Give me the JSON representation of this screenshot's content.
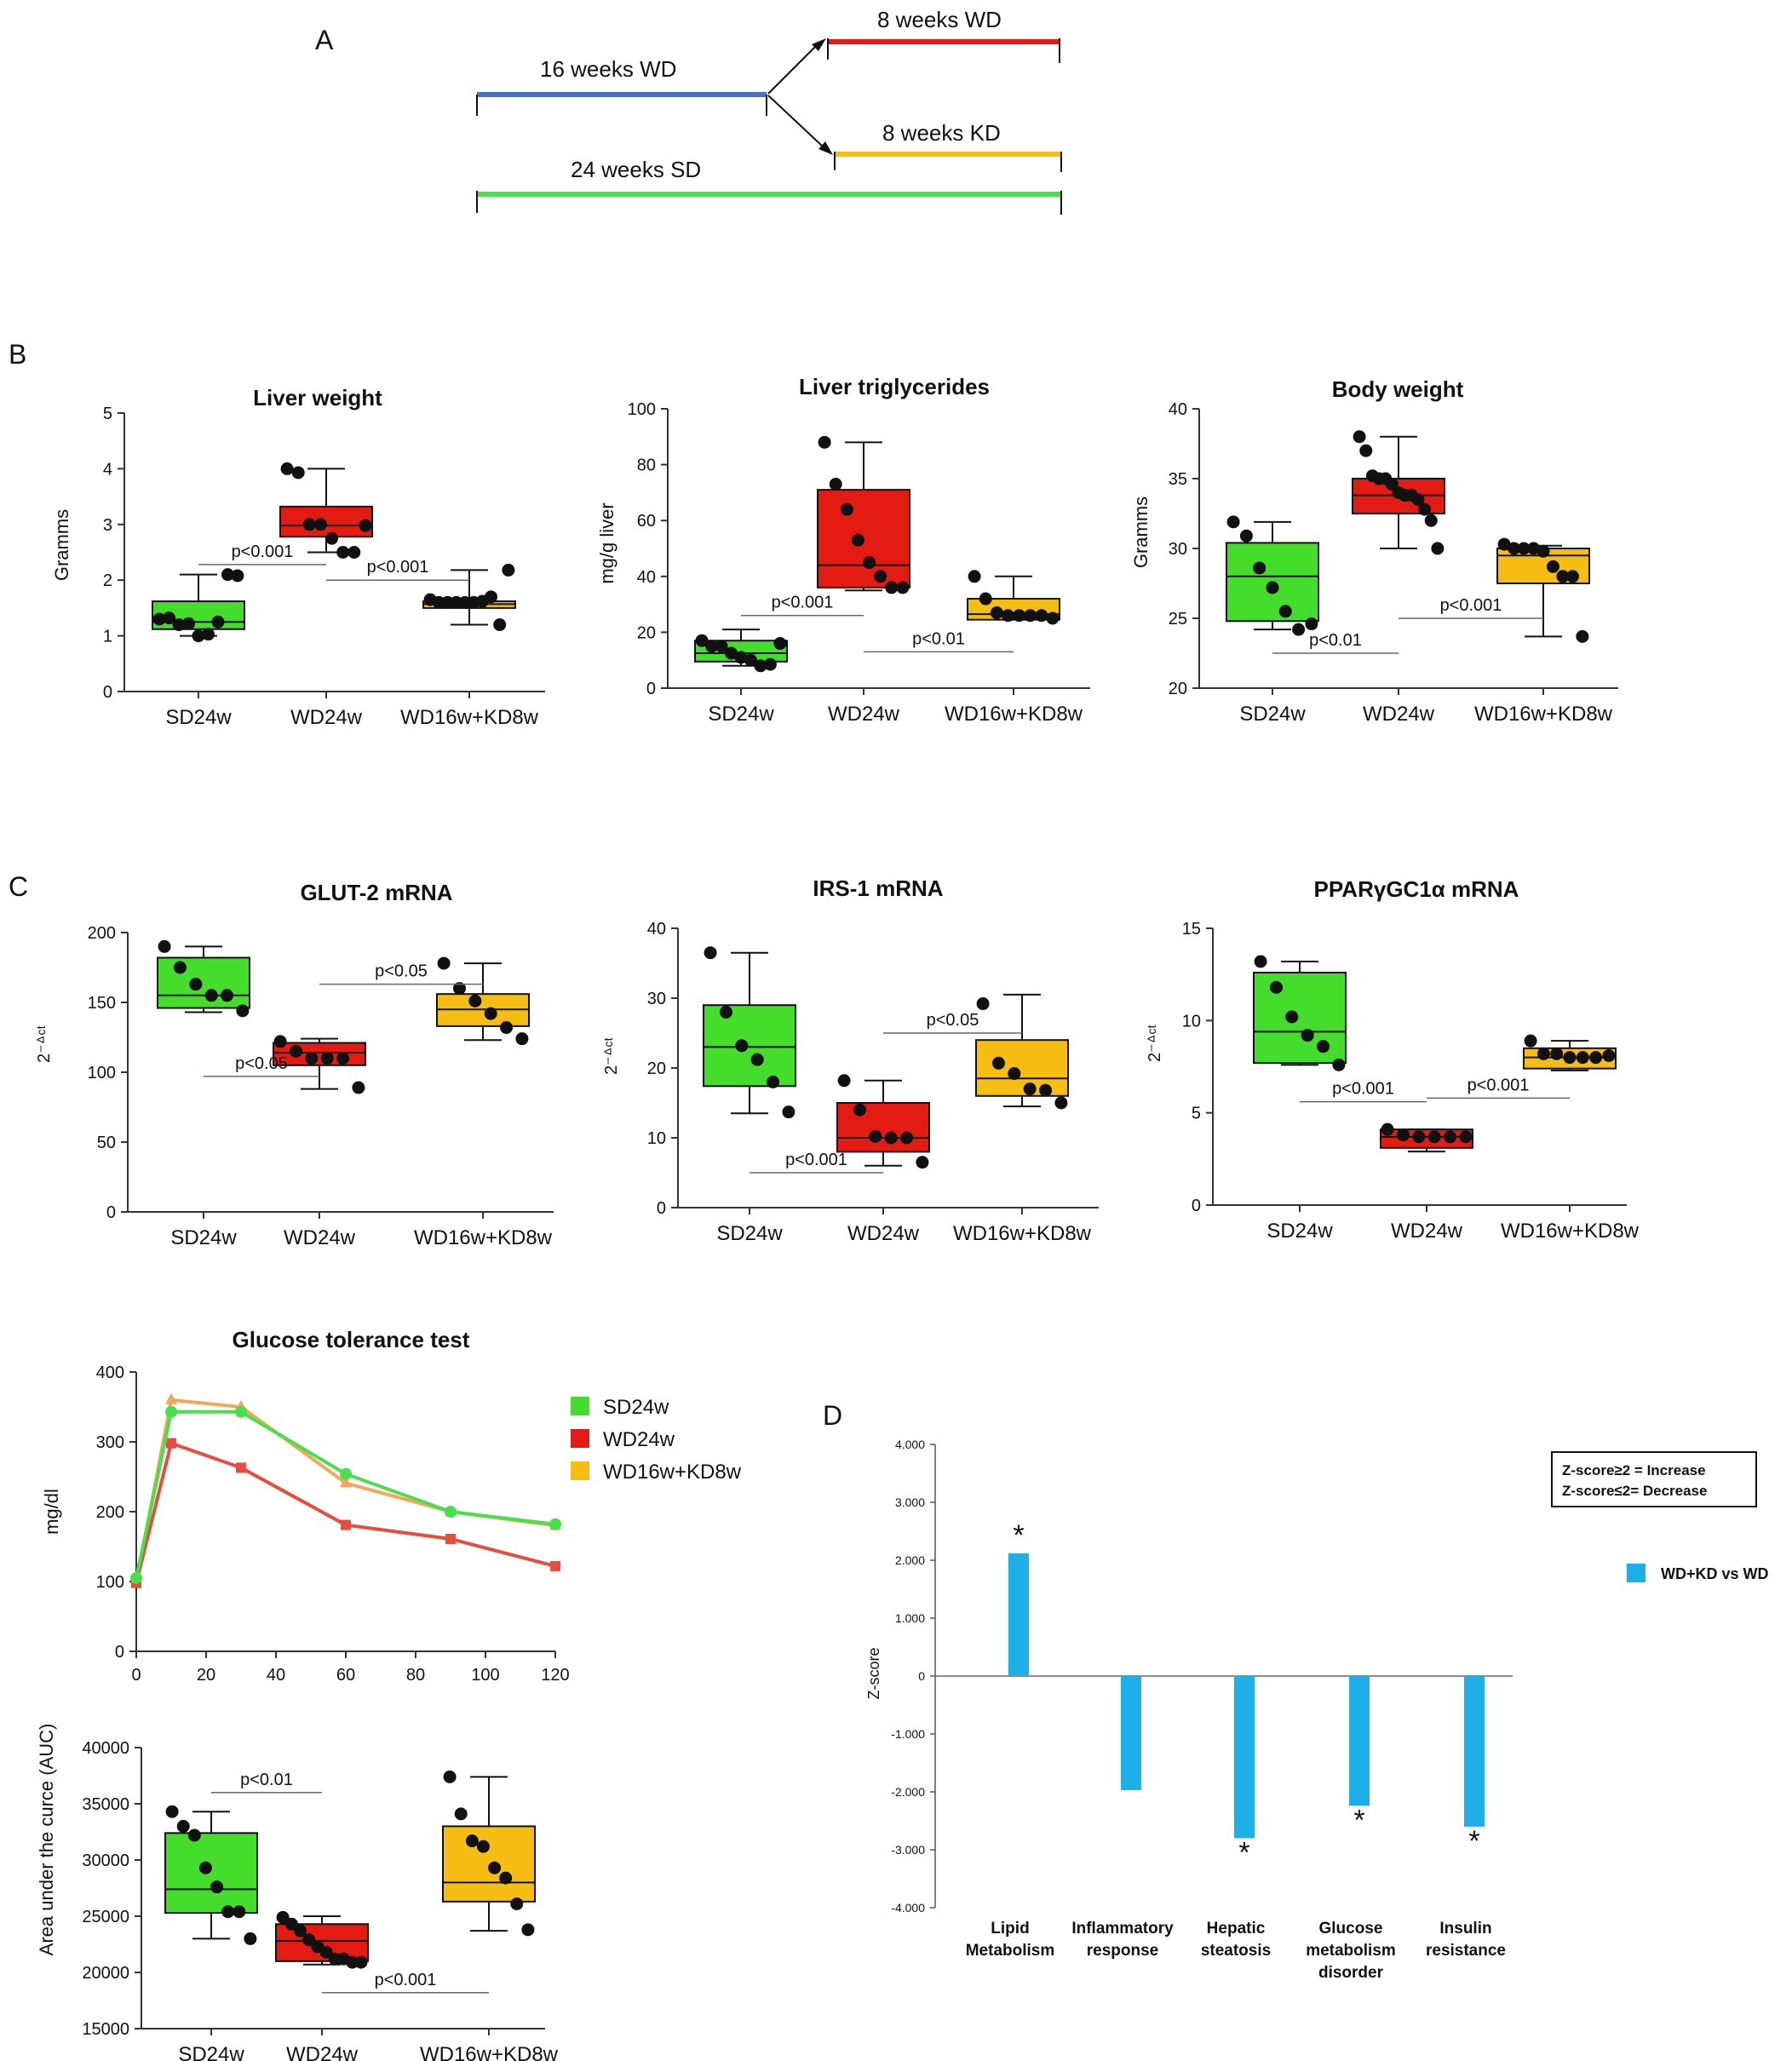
{
  "panel_labels": {
    "A": "A",
    "B": "B",
    "C": "C",
    "D": "D"
  },
  "colors": {
    "sd": "#44dd2c",
    "wd": "#e41b13",
    "kd": "#f6be12",
    "line_sd": "#49e04d",
    "line_wd": "#e84c3d",
    "line_kd": "#f5a65b",
    "timeline_blue": "#4472c4",
    "bar_d": "#1eaee8"
  },
  "timeline": {
    "wd16": "16 weeks WD",
    "wd8": "8 weeks WD",
    "kd8": "8 weeks KD",
    "sd24": "24 weeks SD"
  },
  "liver_weight": {
    "title": "Liver weight",
    "ylabel": "Gramms",
    "yticks": [
      "0",
      "1",
      "2",
      "3",
      "4",
      "5"
    ]
  },
  "liver_tg": {
    "title": "Liver triglycerides",
    "ylabel": "mg/g liver",
    "yticks": [
      "0",
      "20",
      "40",
      "60",
      "80",
      "100"
    ]
  },
  "body_weight": {
    "title": "Body weight",
    "ylabel": "Gramms",
    "yticks": [
      "20",
      "25",
      "30",
      "35",
      "40"
    ]
  },
  "glut2": {
    "title": "GLUT-2 mRNA",
    "ylabel": "2⁻ᐞᶜᵗ",
    "yticks": [
      "0",
      "50",
      "100",
      "150",
      "200"
    ]
  },
  "irs1": {
    "title": "IRS-1 mRNA",
    "ylabel": "2⁻ᐞᶜᵗ",
    "yticks": [
      "0",
      "10",
      "20",
      "30",
      "40"
    ]
  },
  "ppar": {
    "title": "PPARγGC1α mRNA",
    "ylabel": "2⁻ᐞᶜᵗ",
    "yticks": [
      "0",
      "5",
      "10",
      "15"
    ]
  },
  "gtt": {
    "title": "Glucose tolerance test",
    "ylabel": "mg/dl",
    "yticks": [
      "0",
      "100",
      "200",
      "300",
      "400"
    ],
    "xticks": [
      "0",
      "20",
      "40",
      "60",
      "80",
      "100",
      "120"
    ],
    "legend": [
      "SD24w",
      "WD24w",
      "WD16w+KD8w"
    ]
  },
  "auc": {
    "ylabel": "Area under the curce (AUC)",
    "yticks": [
      "15000",
      "20000",
      "25000",
      "30000",
      "35000",
      "40000"
    ]
  },
  "zscore": {
    "ylabel": "Z-score",
    "yticks": [
      "4.000",
      "3.000",
      "2.000",
      "1.000",
      "0",
      "-1.000",
      "-2.000",
      "-3.000",
      "-4.000"
    ],
    "note_line1": "Z-score≥2 = Increase",
    "note_line2": "Z-score≤2= Decrease",
    "legend": "WD+KD vs WD"
  },
  "chart_data": [
    {
      "id": "liver_weight",
      "type": "box",
      "title": "Liver weight",
      "ylabel": "Gramms",
      "ylim": [
        0,
        5
      ],
      "categories": [
        "SD24w",
        "WD24w",
        "WD16w+KD8w"
      ],
      "boxes": [
        {
          "min": 1.0,
          "q1": 1.12,
          "median": 1.25,
          "q3": 1.62,
          "max": 2.1,
          "points": [
            1.3,
            1.32,
            1.2,
            1.22,
            1.0,
            1.03,
            1.25,
            2.1,
            2.08
          ]
        },
        {
          "min": 2.5,
          "q1": 2.78,
          "median": 2.98,
          "q3": 3.32,
          "max": 4.0,
          "points": [
            4.0,
            3.93,
            3.0,
            3.0,
            2.75,
            2.5,
            2.5,
            2.98
          ]
        },
        {
          "min": 1.2,
          "q1": 1.5,
          "median": 1.57,
          "q3": 1.62,
          "max": 2.18,
          "points": [
            1.65,
            1.6,
            1.6,
            1.6,
            1.6,
            1.6,
            1.62,
            1.7,
            1.2,
            2.18
          ]
        }
      ],
      "comparisons": [
        {
          "label": "p<0.001",
          "from": 0,
          "to": 1,
          "y": 2.28
        },
        {
          "label": "p<0.001",
          "from": 1,
          "to": 2,
          "y": 2.0
        }
      ]
    },
    {
      "id": "liver_tg",
      "type": "box",
      "title": "Liver triglycerides",
      "ylabel": "mg/g liver",
      "ylim": [
        0,
        100
      ],
      "categories": [
        "SD24w",
        "WD24w",
        "WD16w+KD8w"
      ],
      "boxes": [
        {
          "min": 8,
          "q1": 9.5,
          "median": 12.5,
          "q3": 17,
          "max": 21,
          "points": [
            17,
            15,
            15,
            12.5,
            11,
            10,
            8,
            8.5,
            16
          ]
        },
        {
          "min": 35,
          "q1": 36,
          "median": 44,
          "q3": 71,
          "max": 88,
          "points": [
            88,
            73,
            64,
            53,
            45,
            40,
            36,
            36
          ]
        },
        {
          "min": 24.5,
          "q1": 24.5,
          "median": 26.5,
          "q3": 32,
          "max": 40,
          "points": [
            40,
            32,
            27,
            26,
            26,
            26,
            26,
            25
          ]
        }
      ],
      "comparisons": [
        {
          "label": "p<0.001",
          "from": 0,
          "to": 1,
          "y": 26
        },
        {
          "label": "p<0.01",
          "from": 1,
          "to": 2,
          "y": 13
        }
      ]
    },
    {
      "id": "body_weight",
      "type": "box",
      "title": "Body weight",
      "ylabel": "Gramms",
      "ylim": [
        20,
        40
      ],
      "categories": [
        "SD24w",
        "WD24w",
        "WD16w+KD8w"
      ],
      "boxes": [
        {
          "min": 24.2,
          "q1": 24.8,
          "median": 28,
          "q3": 30.4,
          "max": 31.9,
          "points": [
            31.9,
            30.9,
            28.6,
            27.2,
            25.5,
            24.2,
            24.6
          ]
        },
        {
          "min": 30,
          "q1": 32.5,
          "median": 33.8,
          "q3": 35,
          "max": 38,
          "points": [
            38,
            37,
            35.2,
            35,
            35,
            34.6,
            34,
            33.8,
            33.8,
            33.5,
            32.8,
            32,
            30
          ]
        },
        {
          "min": 23.7,
          "q1": 27.5,
          "median": 29.5,
          "q3": 30,
          "max": 30.2,
          "points": [
            30.3,
            30,
            30,
            30,
            29.8,
            28.7,
            28,
            28,
            23.7
          ]
        }
      ],
      "comparisons": [
        {
          "label": "p<0.01",
          "from": 0,
          "to": 1,
          "y": 22.5
        },
        {
          "label": "p<0.001",
          "from": 1,
          "to": 2,
          "y": 25
        }
      ]
    },
    {
      "id": "glut2",
      "type": "box",
      "title": "GLUT-2 mRNA",
      "ylabel": "2-ΔCt",
      "ylim": [
        0,
        200
      ],
      "categories": [
        "SD24w",
        "WD24w",
        "WD16w+KD8w"
      ],
      "boxes": [
        {
          "min": 143,
          "q1": 146,
          "median": 155,
          "q3": 182,
          "max": 190,
          "points": [
            190,
            175,
            163,
            155,
            155,
            144
          ]
        },
        {
          "min": 88,
          "q1": 105,
          "median": 114,
          "q3": 121,
          "max": 124,
          "points": [
            122,
            115,
            110,
            110,
            110,
            89
          ]
        },
        {
          "min": 123,
          "q1": 133,
          "median": 145,
          "q3": 156,
          "max": 178,
          "points": [
            178,
            160,
            151,
            142,
            132,
            124
          ]
        }
      ],
      "comparisons": [
        {
          "label": "p<0.05",
          "from": 0,
          "to": 1,
          "y": 97
        },
        {
          "label": "p<0.05",
          "from": 1,
          "to": 2,
          "y": 163
        }
      ]
    },
    {
      "id": "irs1",
      "type": "box",
      "title": "IRS-1 mRNA",
      "ylabel": "2-ΔCt",
      "ylim": [
        0,
        40
      ],
      "categories": [
        "SD24w",
        "WD24w",
        "WD16w+KD8w"
      ],
      "boxes": [
        {
          "min": 13.5,
          "q1": 17.4,
          "median": 23,
          "q3": 29,
          "max": 36.5,
          "points": [
            36.5,
            28,
            23.2,
            21.2,
            18,
            13.7
          ]
        },
        {
          "min": 6,
          "q1": 8,
          "median": 10,
          "q3": 15,
          "max": 18.2,
          "points": [
            18.2,
            14,
            10.2,
            10,
            10,
            6.5
          ]
        },
        {
          "min": 14.5,
          "q1": 16,
          "median": 18.5,
          "q3": 24,
          "max": 30.5,
          "points": [
            29.2,
            20.7,
            19.2,
            17,
            16.8,
            15
          ]
        }
      ],
      "comparisons": [
        {
          "label": "p<0.001",
          "from": 0,
          "to": 1,
          "y": 5
        },
        {
          "label": "p<0.05",
          "from": 1,
          "to": 2,
          "y": 25
        }
      ]
    },
    {
      "id": "ppar",
      "type": "box",
      "title": "PPARγGC1α mRNA",
      "ylabel": "2-ΔCt",
      "ylim": [
        0,
        15
      ],
      "categories": [
        "SD24w",
        "WD24w",
        "WD16w+KD8w"
      ],
      "boxes": [
        {
          "min": 7.6,
          "q1": 7.7,
          "median": 9.4,
          "q3": 12.6,
          "max": 13.2,
          "points": [
            13.2,
            11.8,
            10.2,
            9.2,
            8.6,
            7.6
          ]
        },
        {
          "min": 2.9,
          "q1": 3.1,
          "median": 3.7,
          "q3": 4.1,
          "max": 4.1,
          "points": [
            4.1,
            3.8,
            3.7,
            3.7,
            3.7,
            3.7
          ]
        },
        {
          "min": 7.3,
          "q1": 7.4,
          "median": 8.0,
          "q3": 8.5,
          "max": 8.9,
          "points": [
            8.9,
            8.2,
            8.2,
            8.0,
            8.0,
            8.0,
            8.1
          ]
        }
      ],
      "comparisons": [
        {
          "label": "p<0.001",
          "from": 0,
          "to": 1,
          "y": 5.6
        },
        {
          "label": "p<0.001",
          "from": 1,
          "to": 2,
          "y": 5.8
        }
      ]
    },
    {
      "id": "gtt",
      "type": "line",
      "title": "Glucose tolerance test",
      "xlabel": "",
      "ylabel": "mg/dl",
      "xlim": [
        0,
        120
      ],
      "ylim": [
        0,
        400
      ],
      "x": [
        0,
        10,
        30,
        60,
        90,
        120
      ],
      "series": [
        {
          "name": "SD24w",
          "values": [
            105,
            343,
            343,
            254,
            200,
            182
          ]
        },
        {
          "name": "WD24w",
          "values": [
            98,
            298,
            263,
            181,
            161,
            122
          ]
        },
        {
          "name": "WD16w+KD8w",
          "values": [
            98,
            360,
            350,
            241,
            200,
            180
          ]
        }
      ]
    },
    {
      "id": "auc",
      "type": "box",
      "title": "",
      "ylabel": "Area under the curce (AUC)",
      "ylim": [
        15000,
        40000
      ],
      "categories": [
        "SD24w",
        "WD24w",
        "WD16w+KD8w"
      ],
      "boxes": [
        {
          "min": 23000,
          "q1": 25300,
          "median": 27400,
          "q3": 32400,
          "max": 34300,
          "points": [
            34300,
            33000,
            32200,
            29300,
            27600,
            25400,
            25400,
            23000
          ]
        },
        {
          "min": 20700,
          "q1": 21000,
          "median": 22800,
          "q3": 24300,
          "max": 25000,
          "points": [
            24900,
            24300,
            23700,
            22900,
            22300,
            21800,
            21200,
            21200,
            20900,
            20900
          ]
        },
        {
          "min": 23700,
          "q1": 26300,
          "median": 28000,
          "q3": 33000,
          "max": 37400,
          "points": [
            37400,
            34100,
            31700,
            31200,
            29300,
            28400,
            26100,
            23800
          ]
        }
      ],
      "comparisons": [
        {
          "label": "p<0.01",
          "from": 0,
          "to": 1,
          "y": 36000
        },
        {
          "label": "p<0.001",
          "from": 1,
          "to": 2,
          "y": 18200
        }
      ]
    },
    {
      "id": "zscore",
      "type": "bar",
      "title": "",
      "ylabel": "Z-score",
      "ylim": [
        -4,
        4
      ],
      "categories": [
        "Lipid Metabolism",
        "Inflammatory response",
        "Hepatic steatosis",
        "Glucose metabolism disorder",
        "Insulin resistance"
      ],
      "category_lines": [
        [
          "Lipid",
          "Metabolism"
        ],
        [
          "Inflammatory",
          "response"
        ],
        [
          "Hepatic",
          "steatosis"
        ],
        [
          "Glucose",
          "metabolism",
          "disorder"
        ],
        [
          "Insulin",
          "resistance"
        ]
      ],
      "series": [
        {
          "name": "WD+KD vs WD",
          "values": [
            2.12,
            -1.97,
            -2.8,
            -2.24,
            -2.6
          ]
        }
      ],
      "significant": [
        true,
        false,
        true,
        true,
        true
      ],
      "marker": "*"
    }
  ]
}
